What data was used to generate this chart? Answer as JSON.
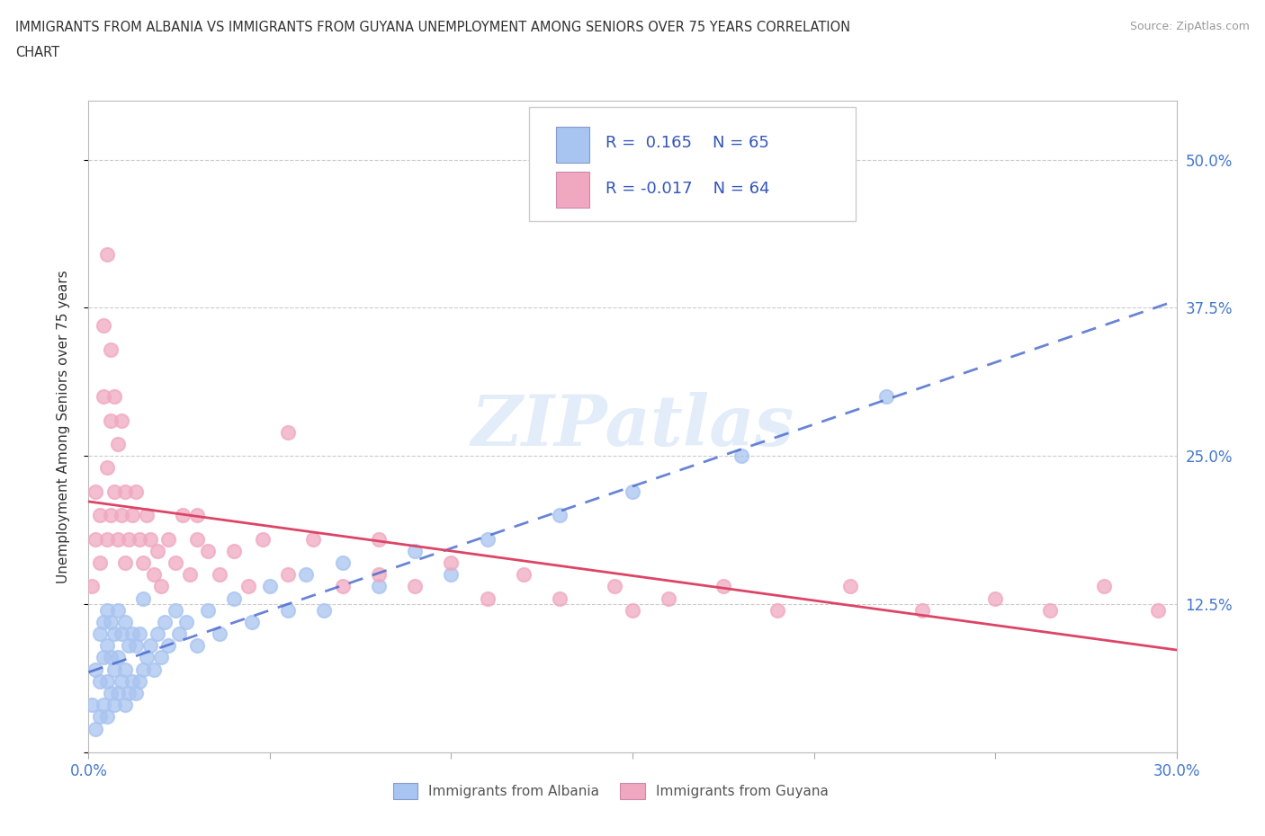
{
  "title_line1": "IMMIGRANTS FROM ALBANIA VS IMMIGRANTS FROM GUYANA UNEMPLOYMENT AMONG SENIORS OVER 75 YEARS CORRELATION",
  "title_line2": "CHART",
  "source_text": "Source: ZipAtlas.com",
  "ylabel": "Unemployment Among Seniors over 75 years",
  "xmin": 0.0,
  "xmax": 0.3,
  "ymin": 0.0,
  "ymax": 0.55,
  "yticks": [
    0.0,
    0.125,
    0.25,
    0.375,
    0.5
  ],
  "ytick_labels": [
    "",
    "12.5%",
    "25.0%",
    "37.5%",
    "50.0%"
  ],
  "xticks": [
    0.0,
    0.05,
    0.1,
    0.15,
    0.2,
    0.25,
    0.3
  ],
  "xtick_labels": [
    "0.0%",
    "",
    "",
    "",
    "",
    "",
    "30.0%"
  ],
  "albania_color": "#a8c4f0",
  "guyana_color": "#f0a8c0",
  "trend_albania_color": "#4466cc",
  "trend_guyana_color": "#dd4466",
  "R_albania": 0.165,
  "N_albania": 65,
  "R_guyana": -0.017,
  "N_guyana": 64,
  "albania_x": [
    0.001,
    0.002,
    0.002,
    0.003,
    0.003,
    0.003,
    0.004,
    0.004,
    0.004,
    0.005,
    0.005,
    0.005,
    0.005,
    0.006,
    0.006,
    0.006,
    0.007,
    0.007,
    0.007,
    0.008,
    0.008,
    0.008,
    0.009,
    0.009,
    0.01,
    0.01,
    0.01,
    0.011,
    0.011,
    0.012,
    0.012,
    0.013,
    0.013,
    0.014,
    0.014,
    0.015,
    0.015,
    0.016,
    0.017,
    0.018,
    0.019,
    0.02,
    0.021,
    0.022,
    0.024,
    0.025,
    0.027,
    0.03,
    0.033,
    0.036,
    0.04,
    0.045,
    0.05,
    0.055,
    0.06,
    0.065,
    0.07,
    0.08,
    0.09,
    0.1,
    0.11,
    0.13,
    0.15,
    0.18,
    0.22
  ],
  "albania_y": [
    0.04,
    0.02,
    0.07,
    0.03,
    0.06,
    0.1,
    0.04,
    0.08,
    0.11,
    0.03,
    0.06,
    0.09,
    0.12,
    0.05,
    0.08,
    0.11,
    0.04,
    0.07,
    0.1,
    0.05,
    0.08,
    0.12,
    0.06,
    0.1,
    0.04,
    0.07,
    0.11,
    0.05,
    0.09,
    0.06,
    0.1,
    0.05,
    0.09,
    0.06,
    0.1,
    0.07,
    0.13,
    0.08,
    0.09,
    0.07,
    0.1,
    0.08,
    0.11,
    0.09,
    0.12,
    0.1,
    0.11,
    0.09,
    0.12,
    0.1,
    0.13,
    0.11,
    0.14,
    0.12,
    0.15,
    0.12,
    0.16,
    0.14,
    0.17,
    0.15,
    0.18,
    0.2,
    0.22,
    0.25,
    0.3
  ],
  "guyana_x": [
    0.001,
    0.002,
    0.002,
    0.003,
    0.003,
    0.004,
    0.004,
    0.005,
    0.005,
    0.005,
    0.006,
    0.006,
    0.006,
    0.007,
    0.007,
    0.008,
    0.008,
    0.009,
    0.009,
    0.01,
    0.01,
    0.011,
    0.012,
    0.013,
    0.014,
    0.015,
    0.016,
    0.017,
    0.018,
    0.019,
    0.02,
    0.022,
    0.024,
    0.026,
    0.028,
    0.03,
    0.033,
    0.036,
    0.04,
    0.044,
    0.048,
    0.055,
    0.062,
    0.07,
    0.08,
    0.09,
    0.1,
    0.11,
    0.12,
    0.13,
    0.145,
    0.16,
    0.175,
    0.19,
    0.21,
    0.23,
    0.25,
    0.265,
    0.28,
    0.295,
    0.03,
    0.055,
    0.08,
    0.15
  ],
  "guyana_y": [
    0.14,
    0.18,
    0.22,
    0.16,
    0.2,
    0.3,
    0.36,
    0.18,
    0.24,
    0.42,
    0.2,
    0.28,
    0.34,
    0.22,
    0.3,
    0.18,
    0.26,
    0.2,
    0.28,
    0.16,
    0.22,
    0.18,
    0.2,
    0.22,
    0.18,
    0.16,
    0.2,
    0.18,
    0.15,
    0.17,
    0.14,
    0.18,
    0.16,
    0.2,
    0.15,
    0.18,
    0.17,
    0.15,
    0.17,
    0.14,
    0.18,
    0.15,
    0.18,
    0.14,
    0.15,
    0.14,
    0.16,
    0.13,
    0.15,
    0.13,
    0.14,
    0.13,
    0.14,
    0.12,
    0.14,
    0.12,
    0.13,
    0.12,
    0.14,
    0.12,
    0.2,
    0.27,
    0.18,
    0.12
  ]
}
